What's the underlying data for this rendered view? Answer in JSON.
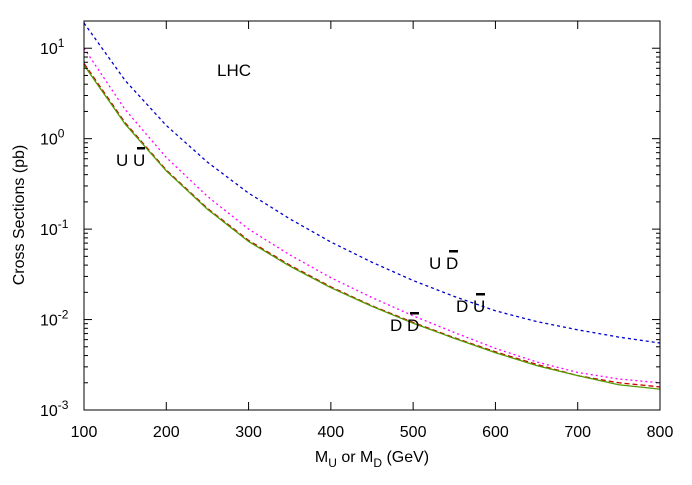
{
  "chart_data": {
    "type": "line",
    "xlabel": {
      "main": "M",
      "sub1": "U",
      "mid": " or M",
      "sub2": "D",
      "unit": "   (GeV)"
    },
    "ylabel": "Cross Sections  (pb)",
    "xlim": [
      100,
      800
    ],
    "ylim": [
      0.001,
      20
    ],
    "yscale": "log",
    "grid": false,
    "x_ticks": [
      "100",
      "200",
      "300",
      "400",
      "500",
      "600",
      "700",
      "800"
    ],
    "x_tick_values": [
      100,
      200,
      300,
      400,
      500,
      600,
      700,
      800
    ],
    "y_ticks": [
      {
        "value": 0.001,
        "base": "10",
        "exp": "-3"
      },
      {
        "value": 0.01,
        "base": "10",
        "exp": "-2"
      },
      {
        "value": 0.1,
        "base": "10",
        "exp": "-1"
      },
      {
        "value": 1,
        "base": "10",
        "exp": "0"
      },
      {
        "value": 10,
        "base": "10",
        "exp": "1"
      }
    ],
    "annotations": [
      {
        "id": "lhc",
        "text": "LHC",
        "bar": false
      },
      {
        "id": "uubar",
        "text": "U U",
        "bar": true
      },
      {
        "id": "udbar",
        "text": "U D",
        "bar": true
      },
      {
        "id": "dubar",
        "text": "D U",
        "bar": true
      },
      {
        "id": "ddbar",
        "text": "D D",
        "bar": true
      }
    ],
    "series": [
      {
        "id": "udbar",
        "color": "#0000cc",
        "dash": "3,3",
        "x": [
          100,
          150,
          200,
          250,
          300,
          350,
          400,
          450,
          500,
          550,
          600,
          650,
          700,
          750,
          800
        ],
        "y": [
          19.0,
          4.4,
          1.4,
          0.55,
          0.25,
          0.13,
          0.072,
          0.043,
          0.027,
          0.018,
          0.0125,
          0.0095,
          0.0077,
          0.0064,
          0.0055
        ]
      },
      {
        "id": "dubar",
        "color": "#ff00ff",
        "dash": "2,3",
        "x": [
          100,
          150,
          200,
          250,
          300,
          350,
          400,
          450,
          500,
          550,
          600,
          650,
          700,
          750,
          800
        ],
        "y": [
          10.0,
          2.1,
          0.62,
          0.23,
          0.1,
          0.052,
          0.029,
          0.0175,
          0.011,
          0.0072,
          0.0048,
          0.0034,
          0.0026,
          0.0022,
          0.002
        ]
      },
      {
        "id": "ddbar",
        "color": "#cc0000",
        "dash": "5,3",
        "x": [
          100,
          150,
          200,
          250,
          300,
          350,
          400,
          450,
          500,
          550,
          600,
          650,
          700,
          750,
          800
        ],
        "y": [
          6.8,
          1.5,
          0.45,
          0.17,
          0.075,
          0.04,
          0.023,
          0.0142,
          0.0093,
          0.0063,
          0.0044,
          0.0032,
          0.0024,
          0.002,
          0.0018
        ]
      },
      {
        "id": "uubar",
        "color": "#559900",
        "dash": "",
        "x": [
          100,
          150,
          200,
          250,
          300,
          350,
          400,
          450,
          500,
          550,
          600,
          650,
          700,
          750,
          800
        ],
        "y": [
          6.5,
          1.45,
          0.44,
          0.166,
          0.073,
          0.039,
          0.0225,
          0.014,
          0.0091,
          0.0062,
          0.0043,
          0.0031,
          0.0024,
          0.0019,
          0.0017
        ]
      }
    ]
  }
}
